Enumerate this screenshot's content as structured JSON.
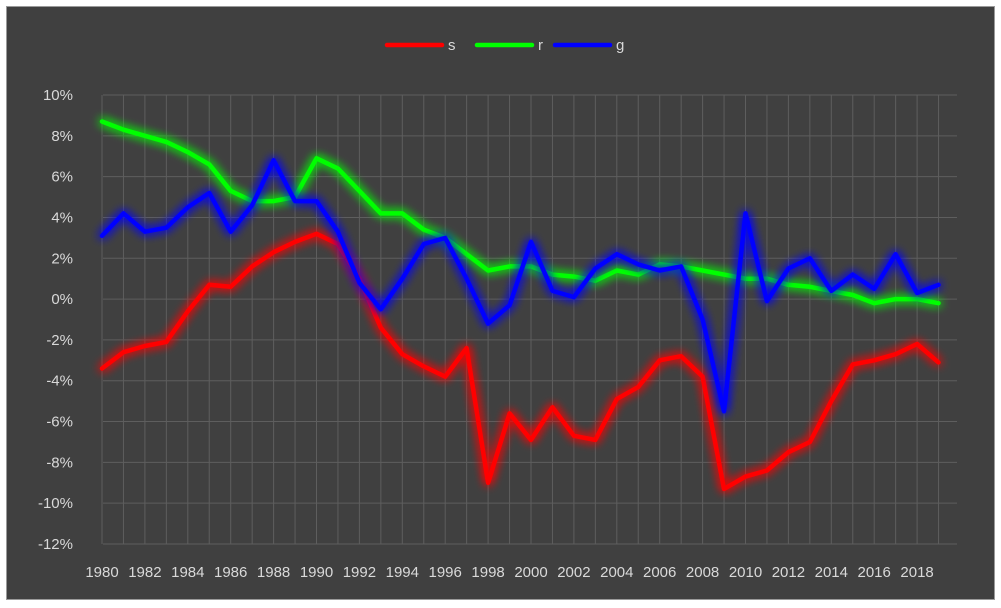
{
  "chart_data": {
    "type": "line",
    "title": "",
    "xlabel": "",
    "ylabel": "",
    "x": [
      1980,
      1981,
      1982,
      1983,
      1984,
      1985,
      1986,
      1987,
      1988,
      1989,
      1990,
      1991,
      1992,
      1993,
      1994,
      1995,
      1996,
      1997,
      1998,
      1999,
      2000,
      2001,
      2002,
      2003,
      2004,
      2005,
      2006,
      2007,
      2008,
      2009,
      2010,
      2011,
      2012,
      2013,
      2014,
      2015,
      2016,
      2017,
      2018,
      2019
    ],
    "x_tick_labels": [
      "1980",
      "1982",
      "1984",
      "1986",
      "1988",
      "1990",
      "1992",
      "1994",
      "1996",
      "1998",
      "2000",
      "2002",
      "2004",
      "2006",
      "2008",
      "2010",
      "2012",
      "2014",
      "2016",
      "2018"
    ],
    "y_tick_labels": [
      "10%",
      "8%",
      "6%",
      "4%",
      "2%",
      "0%",
      "-2%",
      "-4%",
      "-6%",
      "-8%",
      "-10%",
      "-12%"
    ],
    "ylim": [
      -12,
      10
    ],
    "y_unit": "%",
    "grid": true,
    "legend_position": "top-center",
    "background_color": "#404040",
    "series": [
      {
        "name": "s",
        "color": "#ff0000",
        "values": [
          -3.4,
          -2.6,
          -2.3,
          -2.1,
          -0.6,
          0.7,
          0.6,
          1.6,
          2.3,
          2.8,
          3.2,
          2.7,
          1.0,
          -1.4,
          -2.7,
          -3.3,
          -3.8,
          -2.4,
          -9.0,
          -5.6,
          -6.9,
          -5.3,
          -6.7,
          -6.9,
          -4.9,
          -4.3,
          -3.0,
          -2.8,
          -3.8,
          -9.3,
          -8.7,
          -8.4,
          -7.5,
          -7.0,
          -5.0,
          -3.2,
          -3.0,
          -2.7,
          -2.2,
          -3.1
        ]
      },
      {
        "name": "r",
        "color": "#00ff00",
        "values": [
          8.7,
          8.3,
          8.0,
          7.7,
          7.2,
          6.6,
          5.3,
          4.8,
          4.8,
          5.0,
          6.9,
          6.4,
          5.3,
          4.2,
          4.2,
          3.4,
          3.0,
          2.2,
          1.4,
          1.6,
          1.6,
          1.2,
          1.1,
          0.9,
          1.4,
          1.2,
          1.7,
          1.6,
          1.4,
          1.2,
          1.0,
          1.0,
          0.7,
          0.6,
          0.4,
          0.2,
          -0.2,
          0.0,
          0.0,
          -0.2
        ]
      },
      {
        "name": "g",
        "color": "#0000ff",
        "values": [
          3.1,
          4.2,
          3.3,
          3.5,
          4.5,
          5.2,
          3.3,
          4.6,
          6.8,
          4.8,
          4.8,
          3.3,
          0.8,
          -0.5,
          1.0,
          2.7,
          3.0,
          1.0,
          -1.2,
          -0.3,
          2.8,
          0.4,
          0.1,
          1.5,
          2.2,
          1.7,
          1.4,
          1.6,
          -1.0,
          -5.5,
          4.2,
          -0.1,
          1.5,
          2.0,
          0.4,
          1.2,
          0.5,
          2.2,
          0.3,
          0.7
        ]
      }
    ]
  }
}
